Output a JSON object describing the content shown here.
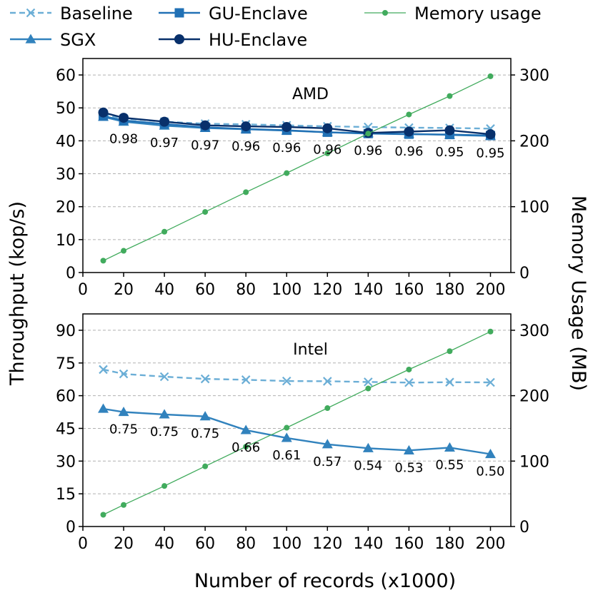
{
  "chart_data": {
    "type": "line",
    "xlabel": "Number of records (x1000)",
    "ylabel_left": "Throughput (kop/s)",
    "ylabel_right": "Memory Usage (MB)",
    "x": [
      10,
      20,
      40,
      60,
      80,
      100,
      120,
      140,
      160,
      180,
      200
    ],
    "xticks": [
      0,
      20,
      40,
      60,
      80,
      100,
      120,
      140,
      160,
      180,
      200
    ],
    "xlim": [
      0,
      210
    ],
    "legend": {
      "placement": "top",
      "entries": [
        "Baseline",
        "GU-Enclave",
        "Memory usage",
        "SGX",
        "HU-Enclave"
      ]
    },
    "colors": {
      "baseline": "#6baed6",
      "sgx": "#3182bd",
      "gu": "#2171b5",
      "hu": "#08306b",
      "memory": "#41ab5d"
    },
    "panels": [
      {
        "label": "AMD",
        "ylim": [
          0,
          65
        ],
        "yticks": [
          0,
          10,
          20,
          30,
          40,
          50,
          60
        ],
        "y2lim": [
          0,
          325
        ],
        "y2ticks": [
          0,
          100,
          200,
          300
        ],
        "series": [
          {
            "name": "Baseline",
            "key": "baseline",
            "marker": "x",
            "dashed": true,
            "values": [
              48.0,
              46.8,
              45.8,
              45.2,
              45.0,
              44.7,
              44.4,
              44.2,
              44.0,
              43.9,
              43.7
            ]
          },
          {
            "name": "SGX",
            "key": "sgx",
            "marker": "triangle",
            "dashed": false,
            "values": [
              47.3,
              45.8,
              44.6,
              43.9,
              43.5,
              43.1,
              42.6,
              42.3,
              42.1,
              41.8,
              41.5
            ]
          },
          {
            "name": "GU-Enclave",
            "key": "gu",
            "marker": "square",
            "dashed": false,
            "values": [
              47.5,
              46.2,
              45.1,
              44.1,
              43.6,
              43.2,
              42.6,
              42.2,
              42.0,
              41.9,
              41.6
            ]
          },
          {
            "name": "HU-Enclave",
            "key": "hu",
            "marker": "circle",
            "dashed": false,
            "values": [
              48.6,
              47.0,
              45.8,
              44.7,
              44.4,
              44.2,
              43.8,
              42.4,
              42.8,
              43.2,
              42.0
            ]
          },
          {
            "name": "Memory usage",
            "key": "memory",
            "marker": "dot",
            "axis": "right",
            "values": [
              18,
              33,
              62,
              92,
              122,
              151,
              181,
              211,
              240,
              268,
              298
            ]
          }
        ],
        "ratio_x": [
          20,
          40,
          60,
          80,
          100,
          120,
          140,
          160,
          180,
          200
        ],
        "ratios": [
          "0.98",
          "0.97",
          "0.97",
          "0.96",
          "0.96",
          "0.96",
          "0.96",
          "0.96",
          "0.95",
          "0.95"
        ]
      },
      {
        "label": "Intel",
        "ylim": [
          0,
          97.5
        ],
        "yticks": [
          0,
          15,
          30,
          45,
          60,
          75,
          90
        ],
        "y2lim": [
          0,
          325
        ],
        "y2ticks": [
          0,
          100,
          200,
          300
        ],
        "series": [
          {
            "name": "Baseline",
            "key": "baseline",
            "marker": "x",
            "dashed": true,
            "values": [
              72,
              70,
              68.7,
              67.7,
              67.3,
              66.7,
              66.6,
              66.3,
              66.0,
              66.2,
              66.1
            ]
          },
          {
            "name": "SGX",
            "key": "sgx",
            "marker": "triangle",
            "dashed": false,
            "values": [
              54,
              52.5,
              51.4,
              50.5,
              44.2,
              40.6,
              37.7,
              35.9,
              34.9,
              36.2,
              33.2
            ]
          },
          {
            "name": "Memory usage",
            "key": "memory",
            "marker": "dot",
            "axis": "right",
            "values": [
              18,
              33,
              62,
              92,
              122,
              151,
              181,
              211,
              240,
              268,
              298
            ]
          }
        ],
        "ratio_x": [
          20,
          40,
          60,
          80,
          100,
          120,
          140,
          160,
          180,
          200
        ],
        "ratios": [
          "0.75",
          "0.75",
          "0.75",
          "0.66",
          "0.61",
          "0.57",
          "0.54",
          "0.53",
          "0.55",
          "0.50"
        ]
      }
    ]
  }
}
